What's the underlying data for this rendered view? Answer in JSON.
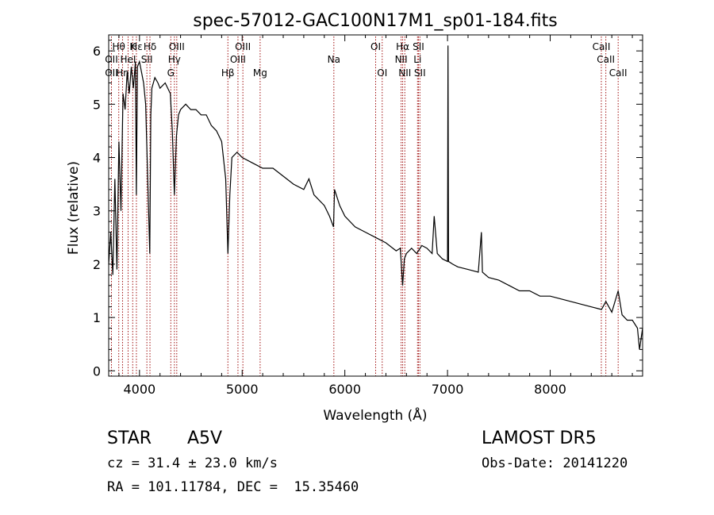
{
  "chart_data": {
    "type": "line",
    "title": "spec-57012-GAC100N17M1_sp01-184.fits",
    "xlabel": "Wavelength (Å)",
    "ylabel": "Flux (relative)",
    "xlim": [
      3700,
      8900
    ],
    "ylim": [
      -0.1,
      6.3
    ],
    "xticks": [
      4000,
      5000,
      6000,
      7000,
      8000
    ],
    "yticks": [
      0,
      1,
      2,
      3,
      4,
      5,
      6
    ],
    "grid": false,
    "series": [
      {
        "x": [
          3700,
          3720,
          3740,
          3760,
          3780,
          3800,
          3820,
          3840,
          3860,
          3880,
          3900,
          3920,
          3940,
          3960,
          3970,
          3980,
          4000,
          4020,
          4040,
          4060,
          4080,
          4100,
          4110,
          4120,
          4150,
          4180,
          4200,
          4250,
          4300,
          4320,
          4340,
          4360,
          4380,
          4400,
          4450,
          4500,
          4550,
          4600,
          4650,
          4700,
          4750,
          4800,
          4840,
          4861,
          4880,
          4900,
          4950,
          5000,
          5100,
          5200,
          5300,
          5400,
          5500,
          5600,
          5650,
          5700,
          5800,
          5850,
          5890,
          5900,
          5950,
          6000,
          6100,
          6200,
          6300,
          6400,
          6500,
          6540,
          6563,
          6580,
          6600,
          6650,
          6700,
          6750,
          6800,
          6850,
          6870,
          6900,
          6950,
          7000,
          7005,
          7010,
          7050,
          7100,
          7200,
          7300,
          7330,
          7340,
          7400,
          7500,
          7600,
          7700,
          7800,
          7900,
          8000,
          8100,
          8200,
          8300,
          8400,
          8500,
          8542,
          8600,
          8662,
          8700,
          8750,
          8800,
          8850,
          8870,
          8900
        ],
        "y": [
          2.0,
          2.6,
          1.8,
          3.6,
          1.9,
          4.3,
          3.0,
          5.2,
          4.9,
          5.6,
          5.2,
          5.7,
          5.3,
          5.8,
          3.3,
          5.7,
          5.8,
          5.6,
          5.4,
          5.0,
          3.6,
          2.2,
          4.8,
          5.3,
          5.5,
          5.4,
          5.3,
          5.4,
          5.2,
          4.5,
          3.3,
          4.4,
          4.8,
          4.9,
          5.0,
          4.9,
          4.9,
          4.8,
          4.8,
          4.6,
          4.5,
          4.3,
          3.6,
          2.2,
          3.3,
          4.0,
          4.1,
          4.0,
          3.9,
          3.8,
          3.8,
          3.65,
          3.5,
          3.4,
          3.6,
          3.3,
          3.1,
          2.9,
          2.7,
          3.4,
          3.1,
          2.9,
          2.7,
          2.6,
          2.5,
          2.4,
          2.25,
          2.3,
          1.6,
          2.1,
          2.2,
          2.3,
          2.2,
          2.35,
          2.3,
          2.2,
          2.9,
          2.2,
          2.1,
          2.05,
          6.1,
          2.05,
          2.0,
          1.95,
          1.9,
          1.85,
          2.6,
          1.85,
          1.75,
          1.7,
          1.6,
          1.5,
          1.5,
          1.4,
          1.4,
          1.35,
          1.3,
          1.25,
          1.2,
          1.15,
          1.3,
          1.1,
          1.5,
          1.05,
          0.95,
          0.95,
          0.8,
          0.4,
          0.8
        ]
      }
    ],
    "lines": [
      {
        "name": "Hε",
        "x": 3970,
        "row": 1
      },
      {
        "name": "OII",
        "x": 3727,
        "row": 2
      },
      {
        "name": "OII",
        "x": 3727,
        "row": 3
      },
      {
        "name": "Hθ",
        "x": 3798,
        "row": 1
      },
      {
        "name": "Hη",
        "x": 3835,
        "row": 3
      },
      {
        "name": "HeI",
        "x": 3889,
        "row": 2
      },
      {
        "name": "K",
        "x": 3934,
        "row": 1
      },
      {
        "name": "SII",
        "x": 4072,
        "row": 2
      },
      {
        "name": "Hδ",
        "x": 4102,
        "row": 1
      },
      {
        "name": "OIII",
        "x": 4363,
        "row": 1
      },
      {
        "name": "Hγ",
        "x": 4340,
        "row": 2
      },
      {
        "name": "G",
        "x": 4305,
        "row": 3
      },
      {
        "name": "Hβ",
        "x": 4861,
        "row": 3
      },
      {
        "name": "OIII",
        "x": 4959,
        "row": 2
      },
      {
        "name": "OIII",
        "x": 5007,
        "row": 1
      },
      {
        "name": "Mg",
        "x": 5175,
        "row": 3
      },
      {
        "name": "Na",
        "x": 5893,
        "row": 2
      },
      {
        "name": "OI",
        "x": 6300,
        "row": 1
      },
      {
        "name": "OI",
        "x": 6364,
        "row": 3
      },
      {
        "name": "Hα",
        "x": 6563,
        "row": 1
      },
      {
        "name": "NII",
        "x": 6548,
        "row": 2
      },
      {
        "name": "NII",
        "x": 6584,
        "row": 3
      },
      {
        "name": "SII",
        "x": 6717,
        "row": 1
      },
      {
        "name": "Li",
        "x": 6708,
        "row": 2
      },
      {
        "name": "SII",
        "x": 6731,
        "row": 3
      },
      {
        "name": "CaII",
        "x": 8498,
        "row": 1
      },
      {
        "name": "CaII",
        "x": 8542,
        "row": 2
      },
      {
        "name": "CaII",
        "x": 8662,
        "row": 3
      }
    ]
  },
  "info": {
    "object_class": "STAR",
    "subclass": "A5V",
    "survey": "LAMOST DR5",
    "cz": "cz = 31.4 ± 23.0 km/s",
    "obs_date": "Obs-Date: 20141220",
    "coords": "RA = 101.11784, DEC =  15.35460"
  }
}
